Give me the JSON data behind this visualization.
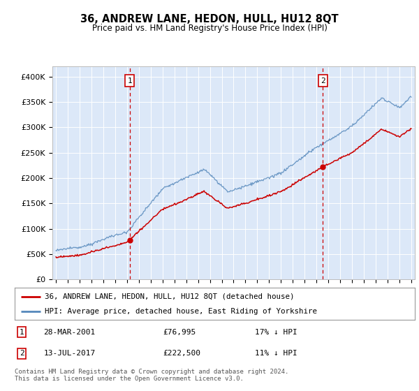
{
  "title": "36, ANDREW LANE, HEDON, HULL, HU12 8QT",
  "subtitle": "Price paid vs. HM Land Registry's House Price Index (HPI)",
  "background_color": "#dce8f8",
  "plot_bg_color": "#dce8f8",
  "red_line_label": "36, ANDREW LANE, HEDON, HULL, HU12 8QT (detached house)",
  "blue_line_label": "HPI: Average price, detached house, East Riding of Yorkshire",
  "sale1_date": "28-MAR-2001",
  "sale1_price": 76995,
  "sale1_note": "17% ↓ HPI",
  "sale2_date": "13-JUL-2017",
  "sale2_price": 222500,
  "sale2_note": "11% ↓ HPI",
  "footer": "Contains HM Land Registry data © Crown copyright and database right 2024.\nThis data is licensed under the Open Government Licence v3.0.",
  "ylim": [
    0,
    420000
  ],
  "yticks": [
    0,
    50000,
    100000,
    150000,
    200000,
    250000,
    300000,
    350000,
    400000
  ],
  "ytick_labels": [
    "£0",
    "£50K",
    "£100K",
    "£150K",
    "£200K",
    "£250K",
    "£300K",
    "£350K",
    "£400K"
  ],
  "sale1_x": 2001.23,
  "sale2_x": 2017.54,
  "red_color": "#cc0000",
  "blue_color": "#5588bb",
  "vline_color": "#cc0000",
  "marker_color": "#cc0000",
  "xlim_left": 1994.7,
  "xlim_right": 2025.3
}
